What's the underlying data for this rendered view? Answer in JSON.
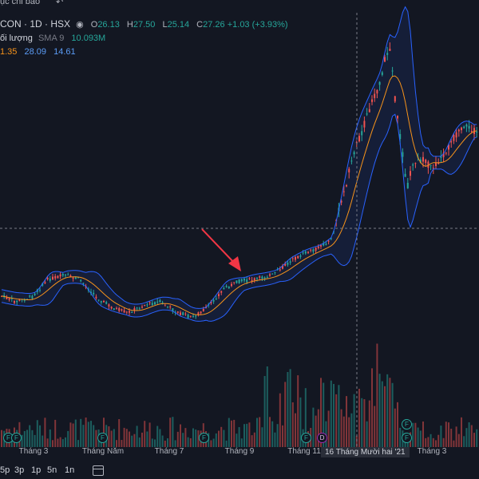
{
  "topbar": {
    "title": "ục chỉ báo",
    "icon": "undo-icon"
  },
  "legend": {
    "symbol": "CON · 1D · HSX",
    "ohlc": [
      {
        "k": "O",
        "v": "26.13"
      },
      {
        "k": "H",
        "v": "27.50"
      },
      {
        "k": "L",
        "v": "25.14"
      },
      {
        "k": "C",
        "v": "27.26"
      }
    ],
    "change": "+1.03 (+3.93%)",
    "volume_label": "ối lượng",
    "volume_sma": "SMA 9",
    "volume_value": "10.093M",
    "bb": [
      "1.35",
      "28.09",
      "14.61"
    ]
  },
  "x_axis": {
    "ticks": [
      "Tháng 3",
      "Tháng Năm",
      "Tháng 7",
      "Tháng 9",
      "Tháng 11",
      "Tháng 3"
    ],
    "crosshair_label": "16 Tháng Mười hai '21"
  },
  "events": [
    {
      "label": "F",
      "kind": "f"
    },
    {
      "label": "F",
      "kind": "f"
    },
    {
      "label": "F",
      "kind": "f"
    },
    {
      "label": "F",
      "kind": "f"
    },
    {
      "label": "F",
      "kind": "f"
    },
    {
      "label": "D",
      "kind": "d"
    },
    {
      "label": "F",
      "kind": "f"
    },
    {
      "label": "F",
      "kind": "f"
    }
  ],
  "bottombar": {
    "timeframes": [
      "5p",
      "3p",
      "1p",
      "5n",
      "1n"
    ],
    "calendar_icon": "calendar-icon"
  },
  "colors": {
    "background": "#131722",
    "up": "#26a69a",
    "down": "#ef5350",
    "bb_basis": "#f7931a",
    "bb_band": "#2962ff",
    "annotation_arrow": "#f23645"
  }
}
